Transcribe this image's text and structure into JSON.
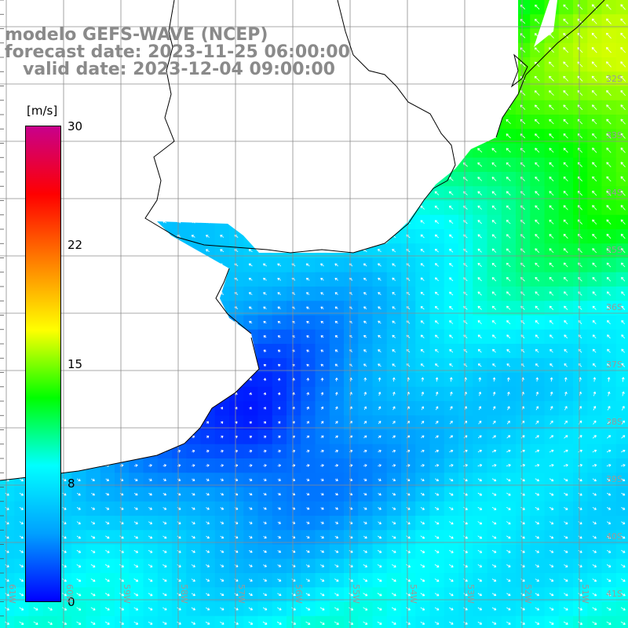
{
  "header": {
    "line1": "modelo GEFS-WAVE (NCEP)",
    "line2": "forecast date: 2023-11-25 06:00:00",
    "line3": "   valid date: 2023-12-04 09:00:00"
  },
  "colorbar": {
    "unit": "[m/s]",
    "ticks": [
      "30",
      "22",
      "15",
      "8",
      "0"
    ],
    "stops": [
      "#0000ff",
      "#00a0ff",
      "#00ffff",
      "#00ff00",
      "#ffff00",
      "#ff8000",
      "#ff0000",
      "#c8008c"
    ]
  },
  "axes": {
    "lat_labels": [
      "32S",
      "33S",
      "34S",
      "35S",
      "36S",
      "37S",
      "38S",
      "39S",
      "40S",
      "41S"
    ],
    "lon_labels": [
      "61W",
      "60W",
      "59W",
      "58W",
      "57W",
      "56W",
      "55W",
      "54W",
      "53W",
      "52W",
      "51W"
    ]
  },
  "colors": {
    "land": "#ffffff",
    "coast": "#000000",
    "grid": "#8c8c8c",
    "arrow": "#ffffff"
  }
}
